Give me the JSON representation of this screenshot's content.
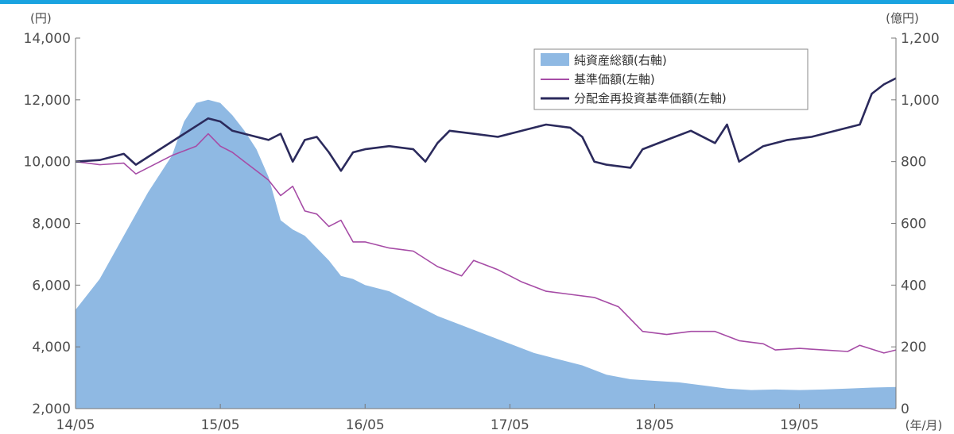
{
  "colors": {
    "top_bar": "#1aa3e0",
    "net_assets_fill": "#8fb9e3",
    "nav_line": "#a64ca6",
    "reinvested_line": "#2b2a5c",
    "axis": "#777777"
  },
  "chart_data": {
    "type": "area+line",
    "left_axis_unit": "(円)",
    "right_axis_unit": "(億円)",
    "x_axis_unit": "(年/月)",
    "left_ylim": [
      2000,
      14000
    ],
    "right_ylim": [
      0,
      1200
    ],
    "left_ticks": [
      "2,000",
      "4,000",
      "6,000",
      "8,000",
      "10,000",
      "12,000",
      "14,000"
    ],
    "right_ticks": [
      "0",
      "200",
      "400",
      "600",
      "800",
      "1,000",
      "1,200"
    ],
    "x_ticks": [
      "14/05",
      "15/05",
      "16/05",
      "17/05",
      "18/05",
      "19/05"
    ],
    "x_range": [
      "2014-05",
      "2020-01"
    ],
    "grid": false,
    "legend_position": "top-right",
    "legend": [
      {
        "label": "純資産総額(右軸)",
        "type": "area"
      },
      {
        "label": "基準価額(左軸)",
        "type": "line"
      },
      {
        "label": "分配金再投資基準価額(左軸)",
        "type": "line"
      }
    ],
    "series": [
      {
        "name": "純資産総額(右軸)",
        "axis": "right",
        "points": [
          [
            "2014-05",
            320
          ],
          [
            "2014-07",
            420
          ],
          [
            "2014-09",
            560
          ],
          [
            "2014-11",
            700
          ],
          [
            "2015-01",
            820
          ],
          [
            "2015-02",
            930
          ],
          [
            "2015-03",
            990
          ],
          [
            "2015-04",
            1000
          ],
          [
            "2015-05",
            990
          ],
          [
            "2015-06",
            950
          ],
          [
            "2015-07",
            900
          ],
          [
            "2015-08",
            840
          ],
          [
            "2015-09",
            750
          ],
          [
            "2015-10",
            610
          ],
          [
            "2015-11",
            580
          ],
          [
            "2015-12",
            560
          ],
          [
            "2016-01",
            520
          ],
          [
            "2016-02",
            480
          ],
          [
            "2016-03",
            430
          ],
          [
            "2016-04",
            420
          ],
          [
            "2016-05",
            400
          ],
          [
            "2016-07",
            380
          ],
          [
            "2016-09",
            340
          ],
          [
            "2016-11",
            300
          ],
          [
            "2017-01",
            270
          ],
          [
            "2017-03",
            240
          ],
          [
            "2017-05",
            210
          ],
          [
            "2017-07",
            180
          ],
          [
            "2017-09",
            160
          ],
          [
            "2017-11",
            140
          ],
          [
            "2018-01",
            110
          ],
          [
            "2018-03",
            95
          ],
          [
            "2018-05",
            90
          ],
          [
            "2018-07",
            85
          ],
          [
            "2018-09",
            75
          ],
          [
            "2018-11",
            65
          ],
          [
            "2019-01",
            60
          ],
          [
            "2019-03",
            62
          ],
          [
            "2019-05",
            60
          ],
          [
            "2019-07",
            62
          ],
          [
            "2019-09",
            65
          ],
          [
            "2019-11",
            68
          ],
          [
            "2020-01",
            70
          ]
        ]
      },
      {
        "name": "基準価額(左軸)",
        "axis": "left",
        "points": [
          [
            "2014-05",
            10000
          ],
          [
            "2014-07",
            9900
          ],
          [
            "2014-09",
            9950
          ],
          [
            "2014-10",
            9600
          ],
          [
            "2014-12",
            10000
          ],
          [
            "2015-01",
            10200
          ],
          [
            "2015-03",
            10500
          ],
          [
            "2015-04",
            10900
          ],
          [
            "2015-05",
            10500
          ],
          [
            "2015-06",
            10300
          ],
          [
            "2015-07",
            10000
          ],
          [
            "2015-08",
            9700
          ],
          [
            "2015-09",
            9400
          ],
          [
            "2015-10",
            8900
          ],
          [
            "2015-11",
            9200
          ],
          [
            "2015-12",
            8400
          ],
          [
            "2016-01",
            8300
          ],
          [
            "2016-02",
            7900
          ],
          [
            "2016-03",
            8100
          ],
          [
            "2016-04",
            7400
          ],
          [
            "2016-05",
            7400
          ],
          [
            "2016-07",
            7200
          ],
          [
            "2016-09",
            7100
          ],
          [
            "2016-11",
            6600
          ],
          [
            "2017-01",
            6300
          ],
          [
            "2017-02",
            6800
          ],
          [
            "2017-04",
            6500
          ],
          [
            "2017-06",
            6100
          ],
          [
            "2017-08",
            5800
          ],
          [
            "2017-10",
            5700
          ],
          [
            "2017-12",
            5600
          ],
          [
            "2018-02",
            5300
          ],
          [
            "2018-04",
            4500
          ],
          [
            "2018-06",
            4400
          ],
          [
            "2018-08",
            4500
          ],
          [
            "2018-10",
            4500
          ],
          [
            "2018-12",
            4200
          ],
          [
            "2019-02",
            4100
          ],
          [
            "2019-03",
            3900
          ],
          [
            "2019-05",
            3950
          ],
          [
            "2019-07",
            3900
          ],
          [
            "2019-09",
            3850
          ],
          [
            "2019-10",
            4050
          ],
          [
            "2019-12",
            3800
          ],
          [
            "2020-01",
            3900
          ]
        ]
      },
      {
        "name": "分配金再投資基準価額(左軸)",
        "axis": "left",
        "points": [
          [
            "2014-05",
            10000
          ],
          [
            "2014-07",
            10050
          ],
          [
            "2014-09",
            10250
          ],
          [
            "2014-10",
            9900
          ],
          [
            "2014-12",
            10400
          ],
          [
            "2015-02",
            10900
          ],
          [
            "2015-04",
            11400
          ],
          [
            "2015-05",
            11300
          ],
          [
            "2015-06",
            11000
          ],
          [
            "2015-07",
            10900
          ],
          [
            "2015-08",
            10800
          ],
          [
            "2015-09",
            10700
          ],
          [
            "2015-10",
            10900
          ],
          [
            "2015-11",
            10000
          ],
          [
            "2015-12",
            10700
          ],
          [
            "2016-01",
            10800
          ],
          [
            "2016-02",
            10300
          ],
          [
            "2016-03",
            9700
          ],
          [
            "2016-04",
            10300
          ],
          [
            "2016-05",
            10400
          ],
          [
            "2016-07",
            10500
          ],
          [
            "2016-09",
            10400
          ],
          [
            "2016-10",
            10000
          ],
          [
            "2016-11",
            10600
          ],
          [
            "2016-12",
            11000
          ],
          [
            "2017-02",
            10900
          ],
          [
            "2017-04",
            10800
          ],
          [
            "2017-06",
            11000
          ],
          [
            "2017-08",
            11200
          ],
          [
            "2017-10",
            11100
          ],
          [
            "2017-11",
            10800
          ],
          [
            "2017-12",
            10000
          ],
          [
            "2018-01",
            9900
          ],
          [
            "2018-03",
            9800
          ],
          [
            "2018-04",
            10400
          ],
          [
            "2018-06",
            10700
          ],
          [
            "2018-08",
            11000
          ],
          [
            "2018-10",
            10600
          ],
          [
            "2018-11",
            11200
          ],
          [
            "2018-12",
            10000
          ],
          [
            "2019-02",
            10500
          ],
          [
            "2019-04",
            10700
          ],
          [
            "2019-06",
            10800
          ],
          [
            "2019-08",
            11000
          ],
          [
            "2019-10",
            11200
          ],
          [
            "2019-11",
            12200
          ],
          [
            "2019-12",
            12500
          ],
          [
            "2020-01",
            12700
          ]
        ]
      }
    ]
  }
}
